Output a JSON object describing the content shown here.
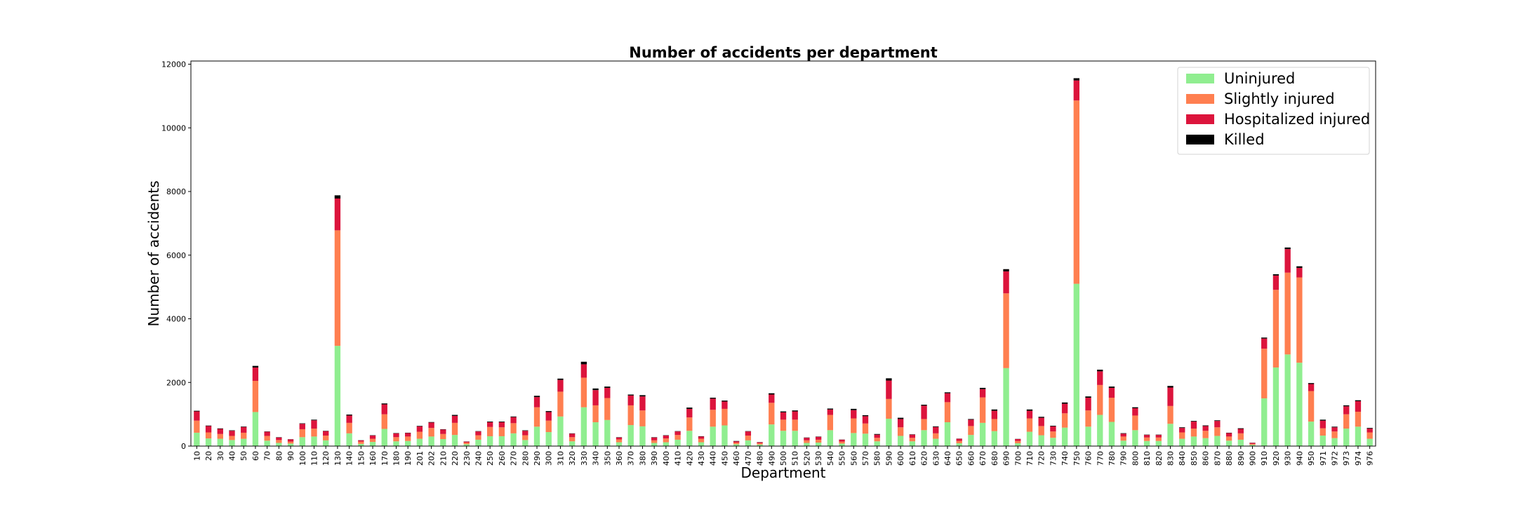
{
  "chart_data": {
    "type": "bar",
    "stacked": true,
    "title": "Number of accidents per department",
    "xlabel": "Department",
    "ylabel": "Number of accidents",
    "ylim": [
      0,
      12100
    ],
    "yticks": [
      0,
      2000,
      4000,
      6000,
      8000,
      10000,
      12000
    ],
    "grid": false,
    "legend_position": "top-right",
    "categories": [
      "10",
      "20",
      "30",
      "40",
      "50",
      "60",
      "70",
      "80",
      "90",
      "100",
      "110",
      "120",
      "130",
      "140",
      "150",
      "160",
      "170",
      "180",
      "190",
      "201",
      "202",
      "210",
      "220",
      "230",
      "240",
      "250",
      "260",
      "270",
      "280",
      "290",
      "300",
      "310",
      "320",
      "330",
      "340",
      "350",
      "360",
      "370",
      "380",
      "390",
      "400",
      "410",
      "420",
      "430",
      "440",
      "450",
      "460",
      "470",
      "480",
      "490",
      "500",
      "510",
      "520",
      "530",
      "540",
      "550",
      "560",
      "570",
      "580",
      "590",
      "600",
      "610",
      "620",
      "630",
      "640",
      "650",
      "660",
      "670",
      "680",
      "690",
      "700",
      "710",
      "720",
      "730",
      "740",
      "750",
      "760",
      "770",
      "780",
      "790",
      "800",
      "810",
      "820",
      "830",
      "840",
      "850",
      "860",
      "870",
      "880",
      "890",
      "900",
      "910",
      "920",
      "930",
      "940",
      "950",
      "971",
      "972",
      "973",
      "974",
      "976"
    ],
    "series": [
      {
        "name": "Uninjured",
        "color": "#90ee90",
        "values": [
          420,
          240,
          230,
          190,
          230,
          1070,
          170,
          100,
          80,
          280,
          300,
          180,
          3150,
          400,
          70,
          130,
          540,
          150,
          160,
          230,
          300,
          220,
          350,
          60,
          200,
          310,
          310,
          400,
          190,
          610,
          440,
          930,
          150,
          1220,
          750,
          820,
          120,
          660,
          620,
          100,
          120,
          200,
          480,
          120,
          610,
          650,
          60,
          180,
          50,
          680,
          480,
          480,
          100,
          110,
          500,
          80,
          410,
          390,
          150,
          860,
          320,
          150,
          500,
          230,
          750,
          90,
          350,
          730,
          470,
          2450,
          90,
          450,
          340,
          260,
          580,
          5100,
          610,
          980,
          760,
          170,
          500,
          160,
          160,
          700,
          230,
          300,
          250,
          320,
          170,
          200,
          40,
          1500,
          2470,
          2880,
          2620,
          770,
          330,
          250,
          550,
          610,
          230
        ]
      },
      {
        "name": "Slightly injured",
        "color": "#ff7f50",
        "values": [
          380,
          190,
          150,
          130,
          190,
          980,
          150,
          90,
          60,
          250,
          250,
          150,
          3630,
          330,
          70,
          100,
          460,
          130,
          140,
          220,
          270,
          160,
          380,
          50,
          140,
          290,
          280,
          320,
          150,
          610,
          360,
          780,
          130,
          930,
          530,
          690,
          90,
          620,
          500,
          80,
          120,
          150,
          420,
          110,
          530,
          520,
          50,
          150,
          40,
          680,
          350,
          350,
          80,
          90,
          480,
          60,
          460,
          320,
          110,
          620,
          270,
          110,
          350,
          170,
          630,
          70,
          280,
          800,
          380,
          2350,
          70,
          420,
          290,
          200,
          450,
          5760,
          510,
          940,
          760,
          130,
          460,
          110,
          110,
          560,
          200,
          250,
          230,
          270,
          130,
          200,
          30,
          1560,
          2440,
          2570,
          2680,
          960,
          230,
          210,
          450,
          470,
          200
        ]
      },
      {
        "name": "Hospitalized injured",
        "color": "#dc143c",
        "values": [
          290,
          200,
          160,
          160,
          180,
          420,
          130,
          80,
          70,
          170,
          260,
          140,
          1000,
          230,
          40,
          100,
          310,
          120,
          110,
          170,
          170,
          140,
          220,
          30,
          120,
          150,
          160,
          190,
          140,
          320,
          270,
          370,
          110,
          420,
          480,
          320,
          60,
          310,
          440,
          90,
          90,
          110,
          270,
          70,
          350,
          230,
          40,
          130,
          30,
          260,
          230,
          260,
          80,
          90,
          170,
          60,
          260,
          230,
          100,
          580,
          260,
          100,
          420,
          200,
          280,
          70,
          200,
          260,
          260,
          690,
          60,
          240,
          260,
          160,
          300,
          630,
          400,
          430,
          310,
          90,
          230,
          80,
          80,
          580,
          140,
          220,
          150,
          200,
          110,
          140,
          30,
          320,
          450,
          740,
          300,
          220,
          240,
          130,
          250,
          330,
          120
        ]
      },
      {
        "name": "Killed",
        "color": "#000000",
        "values": [
          20,
          15,
          15,
          15,
          15,
          50,
          10,
          10,
          5,
          15,
          20,
          10,
          100,
          30,
          5,
          10,
          30,
          10,
          10,
          15,
          15,
          10,
          30,
          5,
          10,
          20,
          20,
          20,
          15,
          40,
          30,
          40,
          10,
          80,
          50,
          40,
          10,
          30,
          40,
          10,
          10,
          10,
          40,
          10,
          30,
          30,
          10,
          10,
          5,
          40,
          30,
          30,
          10,
          10,
          30,
          5,
          40,
          30,
          20,
          70,
          40,
          10,
          30,
          20,
          30,
          5,
          20,
          40,
          40,
          70,
          5,
          40,
          30,
          20,
          40,
          70,
          40,
          50,
          40,
          15,
          30,
          10,
          10,
          50,
          20,
          20,
          20,
          20,
          10,
          20,
          5,
          30,
          40,
          50,
          50,
          30,
          30,
          20,
          30,
          30,
          20
        ]
      }
    ]
  }
}
